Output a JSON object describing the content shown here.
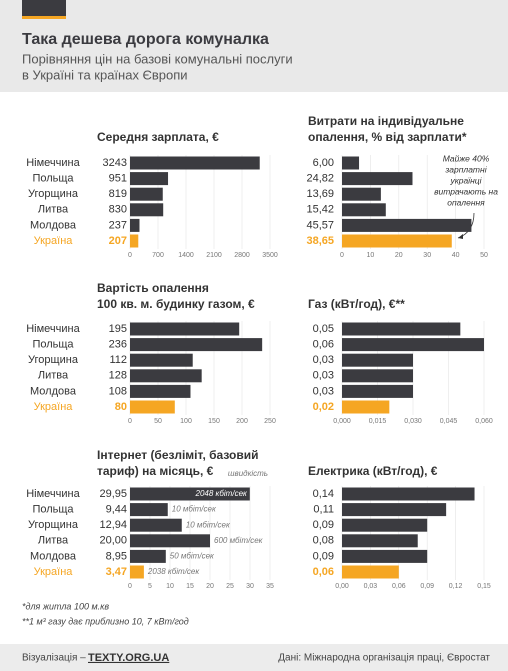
{
  "header": {
    "title": "Така дешева дорога комуналка",
    "subtitle": [
      "Порівняння цін на базові комунальні послуги",
      "в Україні та країнах Європи"
    ]
  },
  "chart_data": [
    {
      "type": "bar",
      "title": [
        "Середня зарплата, €"
      ],
      "categories": [
        "Німеччина",
        "Польща",
        "Угорщина",
        "Литва",
        "Молдова",
        "Україна"
      ],
      "values": [
        3243,
        951,
        819,
        830,
        237,
        207
      ],
      "colors": [
        "#3b3b40",
        "#3b3b40",
        "#3b3b40",
        "#3b3b40",
        "#3b3b40",
        "#f5a623"
      ],
      "xlim": [
        0,
        3500
      ],
      "xticks": [
        0,
        700,
        1400,
        2100,
        2800,
        3500
      ]
    },
    {
      "type": "bar",
      "title": [
        "Витрати на індивідуальне",
        "опалення, % від зарплати*"
      ],
      "values": [
        6.0,
        24.82,
        13.69,
        15.42,
        45.57,
        38.65
      ],
      "value_labels": [
        "6,00",
        "24,82",
        "13,69",
        "15,42",
        "45,57",
        "38,65"
      ],
      "colors": [
        "#3b3b40",
        "#3b3b40",
        "#3b3b40",
        "#3b3b40",
        "#3b3b40",
        "#f5a623"
      ],
      "xlim": [
        0,
        50
      ],
      "xticks": [
        0,
        10,
        20,
        30,
        40,
        50
      ],
      "annotation": [
        "Майже 40%",
        "зарплатні",
        "українці",
        "витрачають на",
        "опалення"
      ]
    },
    {
      "type": "bar",
      "title": [
        "Вартість опалення",
        "100 кв. м. будинку газом, €"
      ],
      "categories": [
        "Німеччина",
        "Польща",
        "Угорщина",
        "Литва",
        "Молдова",
        "Україна"
      ],
      "values": [
        195,
        236,
        112,
        128,
        108,
        80
      ],
      "colors": [
        "#3b3b40",
        "#3b3b40",
        "#3b3b40",
        "#3b3b40",
        "#3b3b40",
        "#f5a623"
      ],
      "xlim": [
        0,
        250
      ],
      "xticks": [
        0,
        50,
        100,
        150,
        200,
        250
      ]
    },
    {
      "type": "bar",
      "title": [
        "Газ (кВт/год), €**"
      ],
      "values": [
        0.05,
        0.06,
        0.03,
        0.03,
        0.03,
        0.02
      ],
      "value_labels": [
        "0,05",
        "0,06",
        "0,03",
        "0,03",
        "0,03",
        "0,02"
      ],
      "colors": [
        "#3b3b40",
        "#3b3b40",
        "#3b3b40",
        "#3b3b40",
        "#3b3b40",
        "#f5a623"
      ],
      "xlim": [
        0,
        0.06
      ],
      "xticks": [
        {
          "value": 0,
          "label": "0,000"
        },
        {
          "value": 0.015,
          "label": "0,015"
        },
        {
          "value": 0.03,
          "label": "0,030"
        },
        {
          "value": 0.045,
          "label": "0,045"
        },
        {
          "value": 0.06,
          "label": "0,060"
        }
      ]
    },
    {
      "type": "bar",
      "title": [
        "Інтернет (безліміт, базовий",
        "тариф) на місяць, €"
      ],
      "categories": [
        "Німеччина",
        "Польща",
        "Угорщина",
        "Литва",
        "Молдова",
        "Україна"
      ],
      "values": [
        29.95,
        9.44,
        12.94,
        20.0,
        8.95,
        3.47
      ],
      "value_labels": [
        "29,95",
        "9,44",
        "12,94",
        "20,00",
        "8,95",
        "3,47"
      ],
      "colors": [
        "#3b3b40",
        "#3b3b40",
        "#3b3b40",
        "#3b3b40",
        "#3b3b40",
        "#f5a623"
      ],
      "xlim": [
        0,
        35
      ],
      "xticks": [
        0,
        5,
        10,
        15,
        20,
        25,
        30,
        35
      ],
      "bar_notes_title": "швидкість",
      "bar_notes": [
        "2048 кбіт/сек",
        "10 мбіт/сек",
        "10 мбіт/сек",
        "600 мбіт/сек",
        "50 мбіт/сек",
        "2038 кбіт/сек"
      ]
    },
    {
      "type": "bar",
      "title": [
        "Електрика (кВт/год), €"
      ],
      "values": [
        0.14,
        0.11,
        0.09,
        0.08,
        0.09,
        0.06
      ],
      "value_labels": [
        "0,14",
        "0,11",
        "0,09",
        "0,08",
        "0,09",
        "0,06"
      ],
      "colors": [
        "#3b3b40",
        "#3b3b40",
        "#3b3b40",
        "#3b3b40",
        "#3b3b40",
        "#f5a623"
      ],
      "xlim": [
        0,
        0.15
      ],
      "xticks": [
        {
          "value": 0,
          "label": "0,00"
        },
        {
          "value": 0.03,
          "label": "0,03"
        },
        {
          "value": 0.06,
          "label": "0,06"
        },
        {
          "value": 0.09,
          "label": "0,09"
        },
        {
          "value": 0.12,
          "label": "0,12"
        },
        {
          "value": 0.15,
          "label": "0,15"
        }
      ]
    }
  ],
  "footnotes": [
    "*для житла 100 м.кв",
    "**1 м³ газу дає приблизно 10, 7 кВт/год"
  ],
  "footer": {
    "credit_label": "Візуалізація –",
    "credit": "TEXTY.ORG.UA",
    "source": "Дані: Міжнародна організація праці, Євростат"
  }
}
